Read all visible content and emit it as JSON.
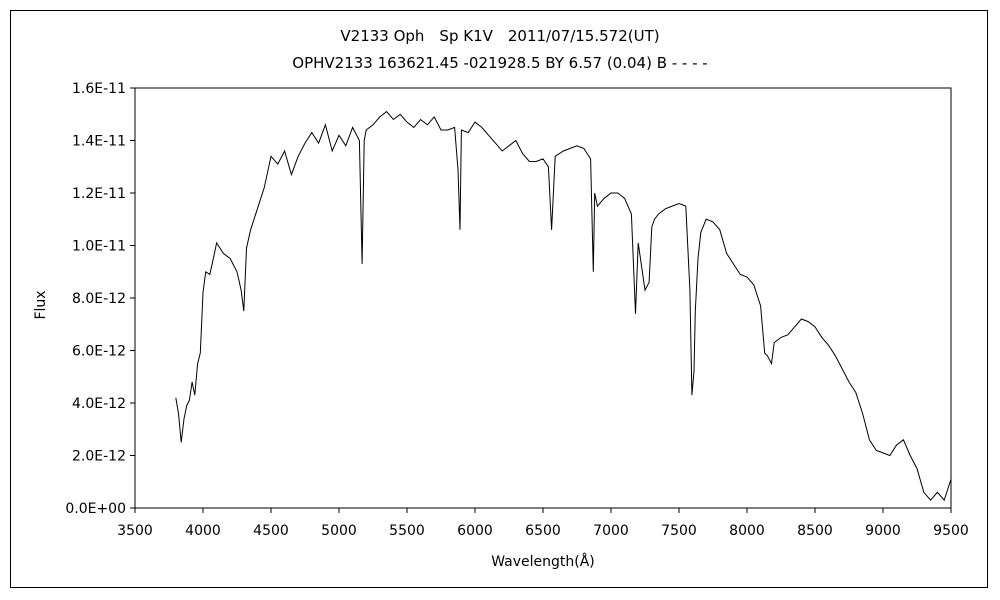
{
  "chart_data": {
    "type": "line",
    "title": "V2133 Oph　Sp K1V　2011/07/15.572(UT)",
    "subtitle": "OPHV2133 163621.45 -021928.5 BY 6.57 (0.04) B - - - -",
    "xlabel": "Wavelength(Å)",
    "ylabel": "Flux",
    "xlim": [
      3500,
      9500
    ],
    "ylim": [
      0,
      1.6e-11
    ],
    "x_ticks": [
      3500,
      4000,
      4500,
      5000,
      5500,
      6000,
      6500,
      7000,
      7500,
      8000,
      8500,
      9000,
      9500
    ],
    "x_tick_labels": [
      "3500",
      "4000",
      "4500",
      "5000",
      "5500",
      "6000",
      "6500",
      "7000",
      "7500",
      "8000",
      "8500",
      "9000",
      "9500"
    ],
    "y_ticks": [
      0,
      2e-12,
      4e-12,
      6e-12,
      8e-12,
      1e-11,
      1.2e-11,
      1.4e-11,
      1.6e-11
    ],
    "y_tick_labels": [
      "0.0E+00",
      "2.0E-12",
      "4.0E-12",
      "6.0E-12",
      "8.0E-12",
      "1.0E-11",
      "1.2E-11",
      "1.4E-11",
      "1.6E-11"
    ],
    "grid": false,
    "legend": "none",
    "series_color": "#000000",
    "x": [
      3800,
      3820,
      3840,
      3860,
      3880,
      3900,
      3920,
      3940,
      3960,
      3980,
      4000,
      4020,
      4050,
      4080,
      4100,
      4150,
      4200,
      4250,
      4280,
      4300,
      4320,
      4350,
      4400,
      4450,
      4500,
      4550,
      4600,
      4650,
      4700,
      4750,
      4800,
      4850,
      4900,
      4950,
      5000,
      5050,
      5100,
      5150,
      5170,
      5185,
      5200,
      5250,
      5300,
      5350,
      5400,
      5450,
      5500,
      5550,
      5600,
      5650,
      5700,
      5750,
      5800,
      5850,
      5875,
      5890,
      5900,
      5950,
      6000,
      6050,
      6100,
      6150,
      6200,
      6250,
      6300,
      6350,
      6400,
      6450,
      6500,
      6540,
      6563,
      6590,
      6650,
      6700,
      6750,
      6800,
      6850,
      6870,
      6880,
      6900,
      6950,
      7000,
      7050,
      7100,
      7150,
      7180,
      7200,
      7250,
      7280,
      7300,
      7320,
      7350,
      7400,
      7450,
      7500,
      7550,
      7580,
      7595,
      7610,
      7620,
      7640,
      7660,
      7700,
      7750,
      7800,
      7850,
      7900,
      7950,
      8000,
      8050,
      8100,
      8130,
      8150,
      8180,
      8200,
      8250,
      8300,
      8350,
      8400,
      8450,
      8500,
      8550,
      8600,
      8650,
      8700,
      8750,
      8800,
      8850,
      8900,
      8950,
      9000,
      9050,
      9100,
      9150,
      9200,
      9250,
      9300,
      9350,
      9400,
      9450,
      9500
    ],
    "y": [
      4.2e-12,
      3.6e-12,
      2.5e-12,
      3.4e-12,
      3.9e-12,
      4.1e-12,
      4.8e-12,
      4.3e-12,
      5.5e-12,
      5.9e-12,
      8.2e-12,
      9e-12,
      8.9e-12,
      9.6e-12,
      1.01e-11,
      9.7e-12,
      9.5e-12,
      9e-12,
      8.3e-12,
      7.5e-12,
      9.9e-12,
      1.06e-11,
      1.14e-11,
      1.22e-11,
      1.34e-11,
      1.31e-11,
      1.36e-11,
      1.27e-11,
      1.34e-11,
      1.39e-11,
      1.43e-11,
      1.39e-11,
      1.46e-11,
      1.36e-11,
      1.42e-11,
      1.38e-11,
      1.45e-11,
      1.4e-11,
      9.3e-12,
      1.4e-11,
      1.44e-11,
      1.46e-11,
      1.49e-11,
      1.51e-11,
      1.48e-11,
      1.5e-11,
      1.47e-11,
      1.45e-11,
      1.48e-11,
      1.46e-11,
      1.49e-11,
      1.44e-11,
      1.44e-11,
      1.45e-11,
      1.29e-11,
      1.06e-11,
      1.44e-11,
      1.43e-11,
      1.47e-11,
      1.45e-11,
      1.42e-11,
      1.39e-11,
      1.36e-11,
      1.38e-11,
      1.4e-11,
      1.35e-11,
      1.32e-11,
      1.32e-11,
      1.33e-11,
      1.3e-11,
      1.06e-11,
      1.34e-11,
      1.36e-11,
      1.37e-11,
      1.38e-11,
      1.37e-11,
      1.33e-11,
      9e-12,
      1.2e-11,
      1.15e-11,
      1.18e-11,
      1.2e-11,
      1.2e-11,
      1.18e-11,
      1.12e-11,
      7.4e-12,
      1.01e-11,
      8.3e-12,
      8.6e-12,
      1.07e-11,
      1.1e-11,
      1.12e-11,
      1.14e-11,
      1.15e-11,
      1.16e-11,
      1.15e-11,
      8.3e-12,
      4.3e-12,
      5.2e-12,
      7.5e-12,
      9.5e-12,
      1.05e-11,
      1.1e-11,
      1.09e-11,
      1.06e-11,
      9.7e-12,
      9.3e-12,
      8.9e-12,
      8.8e-12,
      8.5e-12,
      7.7e-12,
      5.9e-12,
      5.8e-12,
      5.5e-12,
      6.3e-12,
      6.5e-12,
      6.6e-12,
      6.9e-12,
      7.2e-12,
      7.1e-12,
      6.9e-12,
      6.5e-12,
      6.2e-12,
      5.8e-12,
      5.3e-12,
      4.8e-12,
      4.4e-12,
      3.6e-12,
      2.6e-12,
      2.2e-12,
      2.1e-12,
      2e-12,
      2.4e-12,
      2.6e-12,
      2e-12,
      1.5e-12,
      6e-13,
      3e-13,
      6e-13,
      3e-13,
      1.1e-12
    ]
  }
}
